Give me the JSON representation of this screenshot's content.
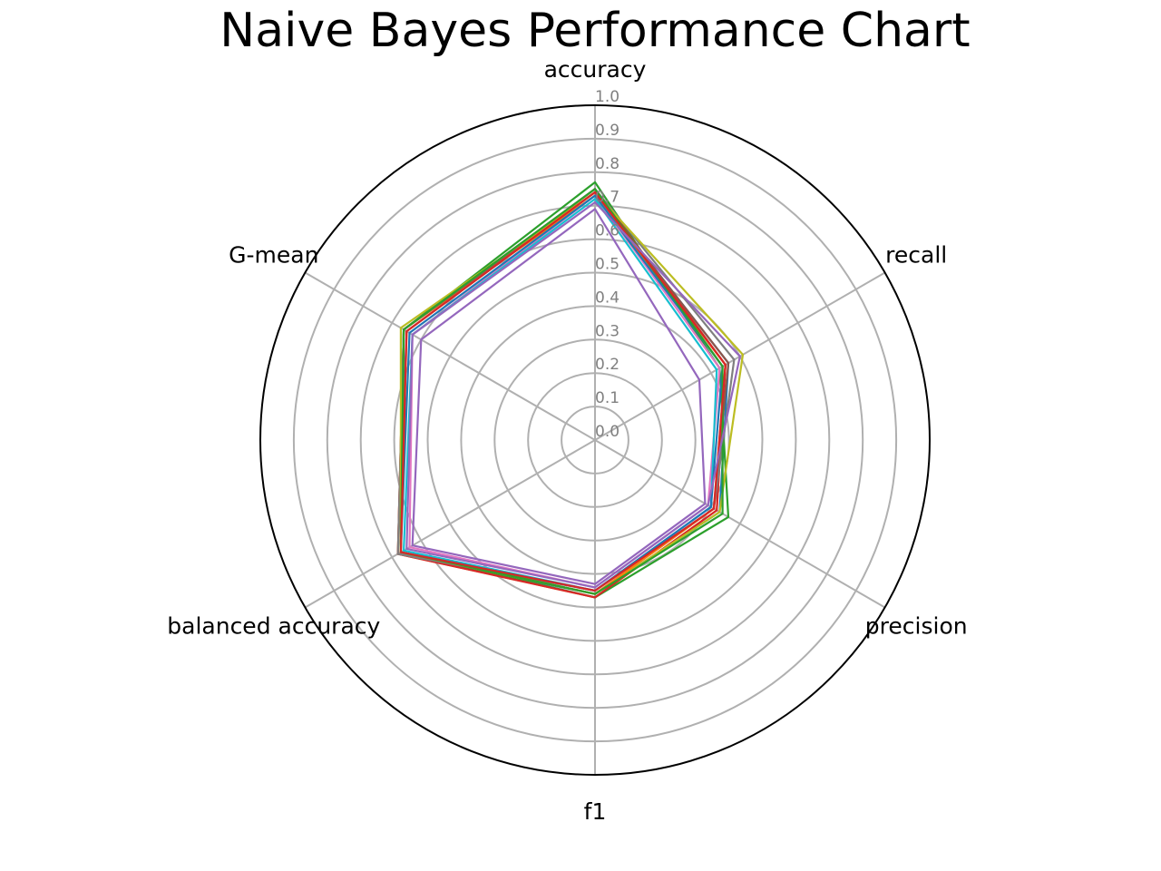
{
  "chart_data": {
    "type": "radar",
    "title": "Naive Bayes Performance Chart",
    "axes": [
      "accuracy",
      "recall",
      "precision",
      "f1",
      "balanced accuracy",
      "G-mean"
    ],
    "rlim": [
      0.0,
      1.0
    ],
    "ticks": [
      "0.0",
      "0.1",
      "0.2",
      "0.3",
      "0.4",
      "0.5",
      "0.6",
      "0.7",
      "0.8",
      "0.9",
      "1.0"
    ],
    "grid": true,
    "legend": false,
    "series": [
      {
        "color": "#1f77b4",
        "values": [
          0.74,
          0.46,
          0.43,
          0.46,
          0.68,
          0.65
        ]
      },
      {
        "color": "#ff7f0e",
        "values": [
          0.73,
          0.45,
          0.42,
          0.47,
          0.68,
          0.66
        ]
      },
      {
        "color": "#2ca02c",
        "values": [
          0.77,
          0.43,
          0.46,
          0.47,
          0.67,
          0.66
        ]
      },
      {
        "color": "#d62728",
        "values": [
          0.75,
          0.45,
          0.42,
          0.47,
          0.68,
          0.66
        ]
      },
      {
        "color": "#9467bd",
        "values": [
          0.69,
          0.36,
          0.38,
          0.43,
          0.63,
          0.6
        ]
      },
      {
        "color": "#8c564b",
        "values": [
          0.74,
          0.46,
          0.41,
          0.46,
          0.67,
          0.66
        ]
      },
      {
        "color": "#e377c2",
        "values": [
          0.73,
          0.43,
          0.39,
          0.44,
          0.64,
          0.63
        ]
      },
      {
        "color": "#7f7f7f",
        "values": [
          0.75,
          0.48,
          0.41,
          0.45,
          0.68,
          0.66
        ]
      },
      {
        "color": "#bcbd22",
        "values": [
          0.74,
          0.51,
          0.43,
          0.46,
          0.67,
          0.67
        ]
      },
      {
        "color": "#17becf",
        "values": [
          0.72,
          0.42,
          0.4,
          0.45,
          0.66,
          0.63
        ]
      },
      {
        "color": "#1f77b4",
        "values": [
          0.73,
          0.44,
          0.4,
          0.45,
          0.67,
          0.64
        ]
      },
      {
        "color": "#ff7f0e",
        "values": [
          0.74,
          0.45,
          0.41,
          0.46,
          0.67,
          0.65
        ]
      },
      {
        "color": "#2ca02c",
        "values": [
          0.75,
          0.44,
          0.44,
          0.46,
          0.67,
          0.66
        ]
      },
      {
        "color": "#d62728",
        "values": [
          0.74,
          0.45,
          0.41,
          0.45,
          0.67,
          0.65
        ]
      },
      {
        "color": "#9467bd",
        "values": [
          0.71,
          0.5,
          0.39,
          0.44,
          0.65,
          0.63
        ]
      }
    ]
  },
  "colors": {
    "grid": "#b0b0b0",
    "frame": "#000000",
    "tick_text": "#808080"
  }
}
